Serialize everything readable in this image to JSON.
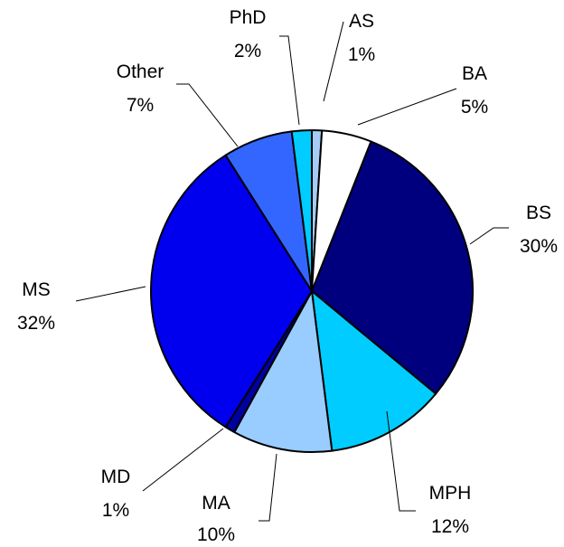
{
  "chart_data": {
    "type": "pie",
    "title": "",
    "start_angle_deg": 90,
    "direction": "clockwise",
    "legend": "none",
    "slices": [
      {
        "label": "AS",
        "percent_label": "1%",
        "value": 1,
        "color": "#a6cbf7"
      },
      {
        "label": "BA",
        "percent_label": "5%",
        "value": 5,
        "color": "#ffffff"
      },
      {
        "label": "BS",
        "percent_label": "30%",
        "value": 30,
        "color": "#00007f"
      },
      {
        "label": "MPH",
        "percent_label": "12%",
        "value": 12,
        "color": "#00ccff"
      },
      {
        "label": "MA",
        "percent_label": "10%",
        "value": 10,
        "color": "#99ccff"
      },
      {
        "label": "MD",
        "percent_label": "1%",
        "value": 1,
        "color": "#0000a0"
      },
      {
        "label": "MS",
        "percent_label": "32%",
        "value": 32,
        "color": "#0000ee"
      },
      {
        "label": "Other",
        "percent_label": "7%",
        "value": 7,
        "color": "#3366ff"
      },
      {
        "label": "PhD",
        "percent_label": "2%",
        "value": 2,
        "color": "#00ccff"
      }
    ]
  }
}
